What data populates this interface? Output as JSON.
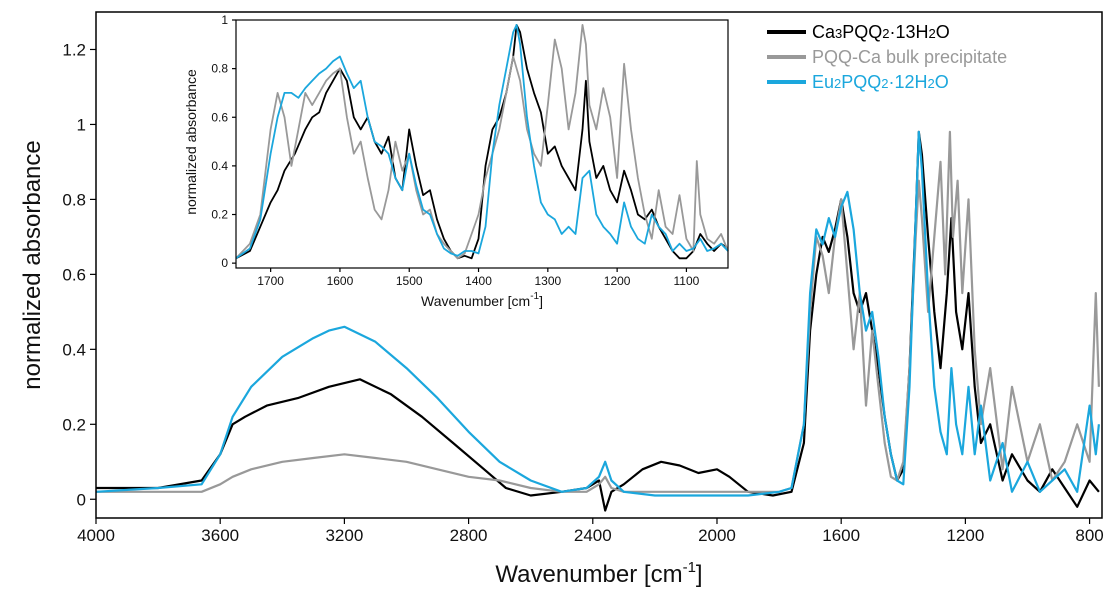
{
  "chart_data": [
    {
      "type": "line",
      "xlabel": "Wavenumber [cm",
      "xlabel_sup": "-1",
      "xlabel_end": "]",
      "ylabel": "normalized absorbance",
      "xlim": [
        4000,
        760
      ],
      "ylim": [
        -0.05,
        1.3
      ],
      "x_ticks": [
        4000,
        3600,
        3200,
        2800,
        2400,
        2000,
        1600,
        1200,
        800
      ],
      "x_tick_labels": [
        "4000",
        "3600",
        "3200",
        "2800",
        "2400",
        "2000",
        "1600",
        "1200",
        "800"
      ],
      "y_ticks": [
        0,
        0.2,
        0.4,
        0.6,
        0.8,
        1.0,
        1.2
      ],
      "y_tick_labels": [
        "0",
        "0.2",
        "0.4",
        "0.6",
        "0.8",
        "1",
        "1.2"
      ],
      "legend": {
        "placement": "top-right",
        "entries": [
          {
            "label_parts": [
              "Ca",
              "3",
              "PQQ",
              "2",
              "·13H",
              "2",
              "O"
            ],
            "color": "#000000"
          },
          {
            "label_parts": [
              "PQQ-Ca bulk precipitate"
            ],
            "color": "#999999"
          },
          {
            "label_parts": [
              "Eu",
              "2",
              "PQQ",
              "2",
              "·12H",
              "2",
              "O"
            ],
            "color": "#1ba7dd"
          }
        ]
      },
      "series": [
        {
          "color": "#000000",
          "x": [
            4000,
            3800,
            3660,
            3600,
            3560,
            3520,
            3450,
            3350,
            3250,
            3150,
            3050,
            2950,
            2850,
            2750,
            2680,
            2600,
            2500,
            2420,
            2380,
            2360,
            2340,
            2300,
            2240,
            2180,
            2120,
            2060,
            2000,
            1960,
            1900,
            1820,
            1760,
            1720,
            1700,
            1680,
            1660,
            1640,
            1620,
            1600,
            1580,
            1560,
            1540,
            1520,
            1500,
            1480,
            1460,
            1440,
            1420,
            1400,
            1380,
            1360,
            1350,
            1340,
            1320,
            1300,
            1280,
            1260,
            1245,
            1230,
            1210,
            1190,
            1170,
            1150,
            1120,
            1080,
            1050,
            1000,
            960,
            920,
            880,
            840,
            800,
            770
          ],
          "y": [
            0.03,
            0.03,
            0.05,
            0.12,
            0.2,
            0.22,
            0.25,
            0.27,
            0.3,
            0.32,
            0.28,
            0.22,
            0.15,
            0.08,
            0.03,
            0.01,
            0.02,
            0.03,
            0.05,
            -0.03,
            0.02,
            0.04,
            0.08,
            0.1,
            0.09,
            0.07,
            0.08,
            0.06,
            0.02,
            0.01,
            0.02,
            0.15,
            0.45,
            0.6,
            0.7,
            0.66,
            0.72,
            0.8,
            0.7,
            0.55,
            0.5,
            0.55,
            0.45,
            0.35,
            0.22,
            0.12,
            0.05,
            0.08,
            0.35,
            0.75,
            0.98,
            0.92,
            0.7,
            0.5,
            0.35,
            0.55,
            0.75,
            0.5,
            0.4,
            0.55,
            0.3,
            0.15,
            0.2,
            0.05,
            0.12,
            0.05,
            0.02,
            0.08,
            0.03,
            -0.02,
            0.05,
            0.02
          ]
        },
        {
          "color": "#999999",
          "x": [
            4000,
            3800,
            3660,
            3600,
            3560,
            3500,
            3400,
            3300,
            3200,
            3100,
            3000,
            2900,
            2800,
            2700,
            2600,
            2500,
            2420,
            2380,
            2360,
            2340,
            2300,
            2200,
            2100,
            2000,
            1900,
            1800,
            1760,
            1720,
            1700,
            1680,
            1660,
            1640,
            1620,
            1600,
            1580,
            1560,
            1540,
            1520,
            1500,
            1480,
            1460,
            1440,
            1420,
            1400,
            1380,
            1360,
            1350,
            1340,
            1320,
            1300,
            1280,
            1265,
            1250,
            1240,
            1225,
            1210,
            1190,
            1170,
            1150,
            1120,
            1080,
            1050,
            1000,
            960,
            920,
            880,
            840,
            800,
            780,
            770
          ],
          "y": [
            0.02,
            0.02,
            0.02,
            0.04,
            0.06,
            0.08,
            0.1,
            0.11,
            0.12,
            0.11,
            0.1,
            0.08,
            0.06,
            0.05,
            0.03,
            0.02,
            0.02,
            0.04,
            0.06,
            0.03,
            0.02,
            0.02,
            0.02,
            0.02,
            0.02,
            0.02,
            0.03,
            0.2,
            0.5,
            0.7,
            0.65,
            0.55,
            0.7,
            0.8,
            0.6,
            0.4,
            0.55,
            0.25,
            0.45,
            0.3,
            0.15,
            0.06,
            0.05,
            0.1,
            0.35,
            0.7,
            0.85,
            0.75,
            0.5,
            0.7,
            0.9,
            0.6,
            0.98,
            0.7,
            0.85,
            0.55,
            0.8,
            0.4,
            0.2,
            0.35,
            0.08,
            0.3,
            0.1,
            0.2,
            0.05,
            0.1,
            0.2,
            0.1,
            0.55,
            0.3
          ]
        },
        {
          "color": "#1ba7dd",
          "x": [
            4000,
            3800,
            3660,
            3600,
            3560,
            3500,
            3400,
            3300,
            3250,
            3200,
            3100,
            3000,
            2900,
            2800,
            2700,
            2600,
            2500,
            2420,
            2380,
            2360,
            2340,
            2300,
            2200,
            2100,
            2000,
            1900,
            1800,
            1760,
            1720,
            1700,
            1680,
            1660,
            1640,
            1620,
            1600,
            1580,
            1560,
            1540,
            1520,
            1500,
            1480,
            1460,
            1440,
            1420,
            1400,
            1380,
            1360,
            1350,
            1340,
            1320,
            1300,
            1280,
            1260,
            1245,
            1230,
            1210,
            1190,
            1170,
            1150,
            1120,
            1080,
            1050,
            1000,
            960,
            920,
            880,
            840,
            800,
            780,
            770
          ],
          "y": [
            0.02,
            0.03,
            0.04,
            0.12,
            0.22,
            0.3,
            0.38,
            0.43,
            0.45,
            0.46,
            0.42,
            0.35,
            0.27,
            0.18,
            0.1,
            0.05,
            0.02,
            0.03,
            0.06,
            0.1,
            0.05,
            0.02,
            0.01,
            0.01,
            0.01,
            0.01,
            0.02,
            0.03,
            0.2,
            0.55,
            0.72,
            0.68,
            0.75,
            0.7,
            0.78,
            0.82,
            0.72,
            0.55,
            0.45,
            0.5,
            0.38,
            0.22,
            0.12,
            0.05,
            0.04,
            0.3,
            0.75,
            0.98,
            0.88,
            0.55,
            0.3,
            0.18,
            0.12,
            0.35,
            0.2,
            0.12,
            0.3,
            0.12,
            0.25,
            0.05,
            0.15,
            0.02,
            0.1,
            0.02,
            0.05,
            0.08,
            0.02,
            0.25,
            0.12,
            0.2
          ]
        }
      ]
    },
    {
      "type": "line",
      "xlabel": "Wavenumber [cm",
      "xlabel_sup": "-1",
      "xlabel_end": "]",
      "ylabel": "normalized absorbance",
      "xlim": [
        1750,
        1040
      ],
      "ylim": [
        -0.02,
        1.0
      ],
      "x_ticks": [
        1700,
        1600,
        1500,
        1400,
        1300,
        1200,
        1100
      ],
      "x_tick_labels": [
        "1700",
        "1600",
        "1500",
        "1400",
        "1300",
        "1200",
        "1100"
      ],
      "y_ticks": [
        0,
        0.2,
        0.4,
        0.6,
        0.8,
        1.0
      ],
      "y_tick_labels": [
        "0",
        "0.2",
        "0.4",
        "0.6",
        "0.8",
        "1"
      ],
      "series": [
        {
          "color": "#000000",
          "x": [
            1750,
            1730,
            1715,
            1700,
            1690,
            1680,
            1665,
            1650,
            1640,
            1630,
            1620,
            1610,
            1600,
            1590,
            1580,
            1570,
            1560,
            1550,
            1540,
            1530,
            1520,
            1510,
            1500,
            1490,
            1480,
            1470,
            1460,
            1450,
            1440,
            1430,
            1420,
            1410,
            1400,
            1390,
            1380,
            1370,
            1360,
            1350,
            1345,
            1340,
            1330,
            1320,
            1310,
            1300,
            1290,
            1280,
            1270,
            1260,
            1250,
            1245,
            1240,
            1230,
            1220,
            1210,
            1200,
            1190,
            1180,
            1170,
            1160,
            1150,
            1140,
            1130,
            1120,
            1110,
            1100,
            1090,
            1080,
            1070,
            1060,
            1050,
            1040
          ],
          "y": [
            0.02,
            0.05,
            0.15,
            0.25,
            0.3,
            0.38,
            0.45,
            0.55,
            0.6,
            0.62,
            0.7,
            0.75,
            0.8,
            0.75,
            0.6,
            0.55,
            0.6,
            0.5,
            0.45,
            0.52,
            0.35,
            0.3,
            0.55,
            0.4,
            0.28,
            0.3,
            0.18,
            0.1,
            0.05,
            0.02,
            0.03,
            0.02,
            0.1,
            0.4,
            0.55,
            0.6,
            0.7,
            0.85,
            0.98,
            0.95,
            0.8,
            0.7,
            0.62,
            0.45,
            0.48,
            0.4,
            0.35,
            0.3,
            0.55,
            0.75,
            0.5,
            0.35,
            0.4,
            0.3,
            0.25,
            0.38,
            0.3,
            0.2,
            0.18,
            0.22,
            0.15,
            0.1,
            0.05,
            0.02,
            0.02,
            0.05,
            0.12,
            0.08,
            0.05,
            0.08,
            0.06
          ]
        },
        {
          "color": "#999999",
          "x": [
            1750,
            1730,
            1715,
            1700,
            1690,
            1680,
            1670,
            1660,
            1650,
            1640,
            1630,
            1620,
            1610,
            1600,
            1590,
            1580,
            1570,
            1560,
            1550,
            1540,
            1530,
            1520,
            1510,
            1500,
            1490,
            1480,
            1470,
            1460,
            1450,
            1440,
            1430,
            1420,
            1410,
            1400,
            1390,
            1380,
            1370,
            1360,
            1350,
            1340,
            1330,
            1320,
            1310,
            1300,
            1290,
            1280,
            1270,
            1260,
            1250,
            1245,
            1240,
            1230,
            1220,
            1210,
            1200,
            1190,
            1180,
            1170,
            1160,
            1150,
            1140,
            1130,
            1120,
            1110,
            1100,
            1090,
            1085,
            1080,
            1070,
            1060,
            1050,
            1040
          ],
          "y": [
            0.02,
            0.08,
            0.2,
            0.55,
            0.7,
            0.6,
            0.4,
            0.55,
            0.7,
            0.65,
            0.7,
            0.75,
            0.78,
            0.8,
            0.6,
            0.45,
            0.5,
            0.35,
            0.22,
            0.18,
            0.3,
            0.5,
            0.38,
            0.45,
            0.3,
            0.2,
            0.22,
            0.12,
            0.08,
            0.05,
            0.02,
            0.04,
            0.12,
            0.2,
            0.35,
            0.45,
            0.55,
            0.7,
            0.85,
            0.75,
            0.55,
            0.45,
            0.4,
            0.65,
            0.92,
            0.8,
            0.55,
            0.7,
            0.98,
            0.9,
            0.65,
            0.55,
            0.72,
            0.6,
            0.35,
            0.82,
            0.55,
            0.35,
            0.2,
            0.1,
            0.3,
            0.15,
            0.12,
            0.28,
            0.1,
            0.05,
            0.42,
            0.2,
            0.1,
            0.08,
            0.12,
            0.05
          ]
        },
        {
          "color": "#1ba7dd",
          "x": [
            1750,
            1730,
            1715,
            1700,
            1690,
            1680,
            1670,
            1660,
            1650,
            1640,
            1630,
            1620,
            1610,
            1600,
            1590,
            1580,
            1570,
            1560,
            1550,
            1540,
            1530,
            1520,
            1510,
            1500,
            1490,
            1480,
            1470,
            1460,
            1450,
            1440,
            1430,
            1420,
            1410,
            1400,
            1390,
            1380,
            1370,
            1360,
            1350,
            1345,
            1340,
            1330,
            1320,
            1310,
            1300,
            1290,
            1280,
            1270,
            1260,
            1250,
            1240,
            1230,
            1220,
            1210,
            1200,
            1190,
            1180,
            1170,
            1160,
            1150,
            1140,
            1130,
            1120,
            1110,
            1100,
            1090,
            1080,
            1070,
            1060,
            1050,
            1040
          ],
          "y": [
            0.02,
            0.06,
            0.18,
            0.45,
            0.6,
            0.7,
            0.7,
            0.68,
            0.72,
            0.75,
            0.78,
            0.8,
            0.83,
            0.85,
            0.78,
            0.72,
            0.75,
            0.6,
            0.5,
            0.48,
            0.45,
            0.35,
            0.3,
            0.45,
            0.32,
            0.22,
            0.2,
            0.12,
            0.06,
            0.04,
            0.03,
            0.05,
            0.05,
            0.04,
            0.15,
            0.45,
            0.65,
            0.8,
            0.95,
            0.98,
            0.9,
            0.6,
            0.4,
            0.25,
            0.2,
            0.18,
            0.12,
            0.15,
            0.12,
            0.35,
            0.38,
            0.2,
            0.15,
            0.12,
            0.08,
            0.25,
            0.15,
            0.1,
            0.08,
            0.2,
            0.15,
            0.12,
            0.05,
            0.08,
            0.05,
            0.06,
            0.1,
            0.05,
            0.06,
            0.08,
            0.05
          ]
        }
      ]
    }
  ]
}
